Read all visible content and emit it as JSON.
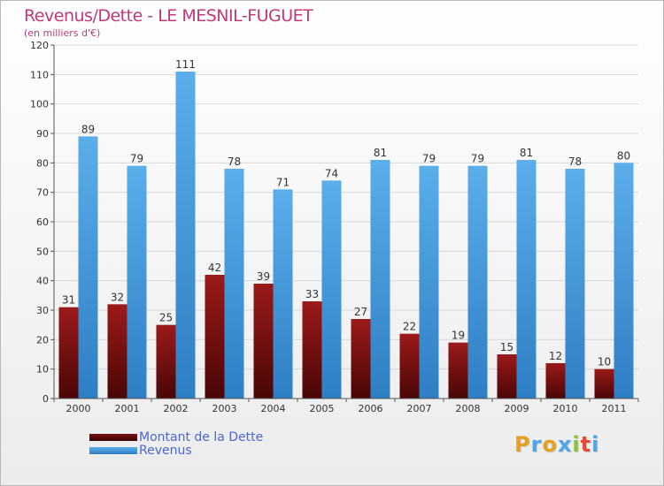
{
  "chart_data": {
    "type": "bar",
    "title": "Revenus/Dette - LE MESNIL-FUGUET",
    "subtitle": "(en milliers d'€)",
    "categories": [
      "2000",
      "2001",
      "2002",
      "2003",
      "2004",
      "2005",
      "2006",
      "2007",
      "2008",
      "2009",
      "2010",
      "2011"
    ],
    "series": [
      {
        "name": "Montant de la Dette",
        "color": "#8b1515",
        "values": [
          31,
          32,
          25,
          42,
          39,
          33,
          27,
          22,
          19,
          15,
          12,
          10
        ]
      },
      {
        "name": "Revenus",
        "color": "#4fa5e8",
        "values": [
          89,
          79,
          111,
          78,
          71,
          74,
          81,
          79,
          79,
          81,
          78,
          80
        ]
      }
    ],
    "ylim": [
      0,
      120
    ],
    "yticks": [
      0,
      10,
      20,
      30,
      40,
      50,
      60,
      70,
      80,
      90,
      100,
      110,
      120
    ],
    "grid": true,
    "legend": "bottom-left"
  },
  "logo": {
    "letters": [
      "P",
      "r",
      "o",
      "x",
      "i",
      "t",
      "i"
    ],
    "colors": [
      "#e8a020",
      "#4fa5e8",
      "#e8a020",
      "#4fa5e8",
      "#8bc33a",
      "#e84a3a",
      "#4fa5e8"
    ]
  }
}
